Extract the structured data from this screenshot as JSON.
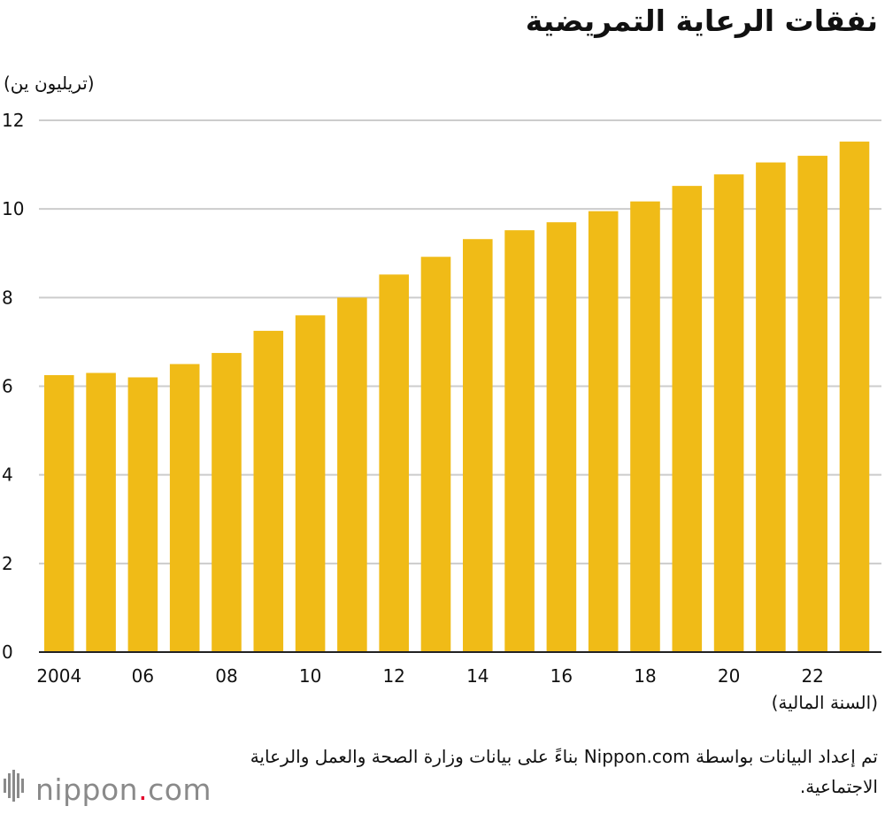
{
  "title": "نفقات الرعاية التمريضية",
  "source_note": "تم إعداد البيانات بواسطة Nippon.com بناءً على بيانات وزارة الصحة والعمل والرعاية الاجتماعية.",
  "logo": {
    "name": "nippon",
    "dot": ".",
    "suffix": "com",
    "icon": "nippon-logo-icon"
  },
  "colors": {
    "bar": "#f0bb17",
    "grid": "#cccccc",
    "axis": "#222222",
    "text": "#111111",
    "logo_dot": "#e4002b"
  },
  "chart_data": {
    "type": "bar",
    "title": "نفقات الرعاية التمريضية",
    "ylabel": "(تريليون ين)",
    "xlabel": "(السنة المالية)",
    "ylim": [
      0,
      12
    ],
    "yticks": [
      0,
      2,
      4,
      6,
      8,
      10,
      12
    ],
    "grid": true,
    "categories": [
      "2004",
      "2005",
      "2006",
      "2007",
      "2008",
      "2009",
      "2010",
      "2011",
      "2012",
      "2013",
      "2014",
      "2015",
      "2016",
      "2017",
      "2018",
      "2019",
      "2020",
      "2021",
      "2022",
      "2023"
    ],
    "xtick_labels": [
      "2004",
      "",
      "06",
      "",
      "08",
      "",
      "10",
      "",
      "12",
      "",
      "14",
      "",
      "16",
      "",
      "18",
      "",
      "20",
      "",
      "22",
      ""
    ],
    "values": [
      6.25,
      6.3,
      6.2,
      6.5,
      6.75,
      7.25,
      7.6,
      8.0,
      8.52,
      8.92,
      9.32,
      9.52,
      9.7,
      9.95,
      10.17,
      10.52,
      10.78,
      11.05,
      11.2,
      11.52
    ]
  }
}
